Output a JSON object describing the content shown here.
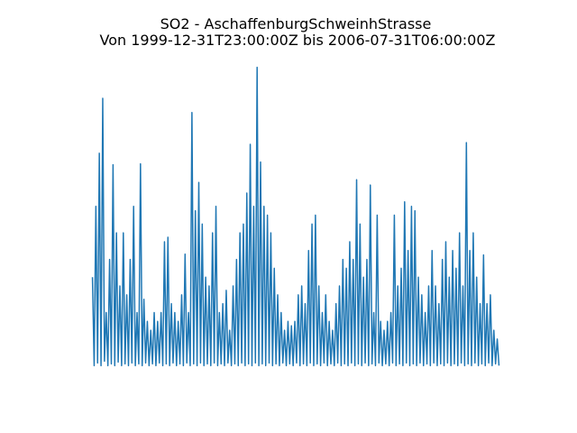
{
  "chart_data": {
    "type": "line",
    "title": "SO2 - AschaffenburgSchweinhStrasse",
    "subtitle": "Von 1999-12-31T23:00:00Z bis 2006-07-31T06:00:00Z",
    "color": "#1f77b4",
    "ylim": [
      -17,
      354
    ],
    "values": [
      100,
      0,
      180,
      3,
      240,
      0,
      302,
      5,
      60,
      0,
      120,
      2,
      227,
      0,
      150,
      4,
      90,
      0,
      150,
      2,
      80,
      0,
      120,
      3,
      180,
      0,
      60,
      2,
      228,
      0,
      75,
      3,
      50,
      0,
      40,
      2,
      60,
      0,
      50,
      3,
      60,
      0,
      140,
      2,
      145,
      0,
      70,
      3,
      60,
      0,
      50,
      2,
      80,
      0,
      126,
      3,
      60,
      0,
      286,
      2,
      175,
      0,
      207,
      3,
      160,
      0,
      100,
      2,
      90,
      0,
      150,
      3,
      180,
      0,
      60,
      2,
      70,
      0,
      85,
      3,
      40,
      0,
      90,
      2,
      120,
      0,
      150,
      3,
      160,
      0,
      195,
      2,
      250,
      0,
      180,
      3,
      337,
      0,
      230,
      2,
      180,
      0,
      170,
      3,
      150,
      0,
      110,
      2,
      80,
      0,
      60,
      3,
      40,
      0,
      50,
      2,
      45,
      0,
      50,
      3,
      80,
      0,
      90,
      2,
      70,
      0,
      130,
      3,
      160,
      0,
      170,
      2,
      90,
      0,
      60,
      3,
      80,
      0,
      50,
      2,
      40,
      0,
      70,
      3,
      90,
      0,
      120,
      2,
      110,
      0,
      140,
      3,
      120,
      0,
      210,
      2,
      160,
      0,
      100,
      3,
      120,
      0,
      204,
      2,
      60,
      0,
      170,
      3,
      50,
      0,
      40,
      2,
      50,
      0,
      60,
      3,
      170,
      0,
      90,
      2,
      110,
      0,
      185,
      3,
      130,
      0,
      180,
      2,
      175,
      0,
      100,
      3,
      80,
      0,
      60,
      2,
      90,
      0,
      130,
      3,
      90,
      0,
      70,
      2,
      120,
      0,
      140,
      3,
      100,
      0,
      130,
      2,
      110,
      0,
      150,
      3,
      90,
      0,
      252,
      2,
      130,
      0,
      150,
      3,
      100,
      0,
      70,
      2,
      125,
      0,
      70,
      3,
      80,
      0,
      40,
      2,
      30,
      0
    ]
  }
}
